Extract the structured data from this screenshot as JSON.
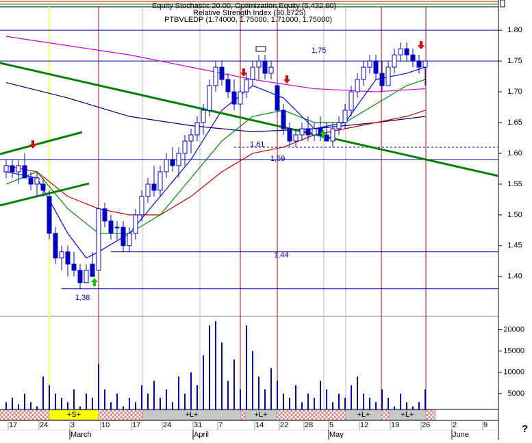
{
  "chart_data": {
    "type": "candlestick",
    "title": "PTBVLEDP (1.74000, 1.75000, 1.71000, 1.75000)",
    "subtitles": [
      "Relative Strength Index (30.8725)",
      "Equity Stochastic 20.00, Optimization Equity (5,432.60)"
    ],
    "categories": [
      null,
      "17",
      null,
      null,
      null,
      null,
      "24",
      null,
      null,
      null,
      null,
      "3",
      null,
      null,
      null,
      null,
      "10",
      null,
      null,
      null,
      null,
      "17",
      null,
      null,
      null,
      null,
      "24",
      null,
      null,
      null,
      null,
      "31",
      null,
      null,
      null,
      "7",
      null,
      null,
      null,
      null,
      null,
      "14",
      null,
      null,
      null,
      "22",
      null,
      null,
      null,
      "28",
      null,
      null,
      null,
      "5",
      null,
      null,
      null,
      null,
      "12",
      null,
      null,
      null,
      null,
      "19",
      null,
      null,
      null,
      null,
      "26",
      null,
      null,
      null,
      null,
      "2",
      null,
      null,
      null,
      null,
      "9",
      null
    ],
    "month_labels": [
      null,
      null,
      null,
      null,
      null,
      null,
      null,
      null,
      null,
      null,
      null,
      "March",
      null,
      null,
      null,
      null,
      null,
      null,
      null,
      null,
      null,
      null,
      null,
      null,
      null,
      null,
      null,
      null,
      null,
      null,
      null,
      "April",
      null,
      null,
      null,
      null,
      null,
      null,
      null,
      null,
      null,
      null,
      null,
      null,
      null,
      null,
      null,
      null,
      null,
      null,
      null,
      null,
      null,
      "May",
      null,
      null,
      null,
      null,
      null,
      null,
      null,
      null,
      null,
      null,
      null,
      null,
      null,
      null,
      null,
      null,
      null,
      null,
      null,
      "June",
      null,
      null,
      null,
      null,
      null,
      null
    ],
    "open": [
      1.57,
      1.58,
      1.57,
      1.58,
      1.56,
      1.55,
      1.55,
      1.53,
      1.47,
      1.43,
      1.44,
      1.42,
      1.41,
      1.39,
      1.42,
      1.41,
      1.51,
      1.49,
      1.48,
      1.48,
      1.45,
      1.47,
      1.5,
      1.53,
      1.55,
      1.54,
      1.57,
      1.59,
      1.58,
      1.6,
      1.62,
      1.63,
      1.65,
      1.67,
      1.71,
      1.74,
      1.72,
      1.7,
      1.68,
      1.7,
      1.72,
      1.74,
      1.75,
      1.73,
      1.71,
      1.67,
      1.64,
      1.62,
      1.63,
      1.64,
      1.63,
      1.64,
      1.63,
      1.62,
      1.64,
      1.65,
      1.67,
      1.7,
      1.72,
      1.74,
      1.75,
      1.73,
      1.71,
      1.74,
      1.76,
      1.77,
      1.76,
      1.75,
      1.74,
      null,
      null,
      null,
      null,
      null,
      null,
      null,
      null,
      null,
      null,
      null
    ],
    "high": [
      1.59,
      1.59,
      1.59,
      1.6,
      1.57,
      1.57,
      1.56,
      1.54,
      1.48,
      1.45,
      1.45,
      1.44,
      1.42,
      1.42,
      1.44,
      1.52,
      1.52,
      1.5,
      1.49,
      1.49,
      1.48,
      1.51,
      1.54,
      1.56,
      1.58,
      1.58,
      1.6,
      1.61,
      1.61,
      1.63,
      1.64,
      1.66,
      1.68,
      1.72,
      1.75,
      1.75,
      1.73,
      1.72,
      1.71,
      1.73,
      1.75,
      1.76,
      1.76,
      1.75,
      1.72,
      1.68,
      1.65,
      1.64,
      1.65,
      1.66,
      1.65,
      1.66,
      1.65,
      1.65,
      1.66,
      1.68,
      1.71,
      1.73,
      1.75,
      1.76,
      1.76,
      1.75,
      1.75,
      1.77,
      1.78,
      1.78,
      1.77,
      1.76,
      1.75,
      null,
      null,
      null,
      null,
      null,
      null,
      null,
      null,
      null,
      null,
      null
    ],
    "low": [
      1.56,
      1.56,
      1.55,
      1.56,
      1.54,
      1.53,
      1.53,
      1.46,
      1.42,
      1.41,
      1.4,
      1.4,
      1.38,
      1.39,
      1.4,
      1.41,
      1.48,
      1.46,
      1.46,
      1.44,
      1.44,
      1.46,
      1.49,
      1.52,
      1.53,
      1.53,
      1.56,
      1.57,
      1.56,
      1.58,
      1.6,
      1.62,
      1.63,
      1.66,
      1.7,
      1.71,
      1.69,
      1.67,
      1.67,
      1.69,
      1.71,
      1.72,
      1.72,
      1.72,
      1.66,
      1.63,
      1.61,
      1.61,
      1.62,
      1.62,
      1.62,
      1.62,
      1.62,
      1.61,
      1.63,
      1.64,
      1.66,
      1.69,
      1.71,
      1.73,
      1.72,
      1.7,
      1.71,
      1.73,
      1.75,
      1.75,
      1.74,
      1.73,
      1.71,
      null,
      null,
      null,
      null,
      null,
      null,
      null,
      null,
      null,
      null,
      null
    ],
    "close": [
      1.58,
      1.57,
      1.58,
      1.56,
      1.55,
      1.56,
      1.54,
      1.47,
      1.43,
      1.44,
      1.42,
      1.41,
      1.39,
      1.41,
      1.4,
      1.51,
      1.49,
      1.47,
      1.48,
      1.45,
      1.47,
      1.5,
      1.53,
      1.55,
      1.54,
      1.57,
      1.59,
      1.58,
      1.6,
      1.62,
      1.63,
      1.65,
      1.67,
      1.71,
      1.74,
      1.72,
      1.7,
      1.68,
      1.7,
      1.72,
      1.74,
      1.75,
      1.73,
      1.74,
      1.67,
      1.64,
      1.62,
      1.63,
      1.64,
      1.63,
      1.64,
      1.63,
      1.62,
      1.64,
      1.65,
      1.67,
      1.7,
      1.72,
      1.74,
      1.75,
      1.73,
      1.71,
      1.74,
      1.76,
      1.77,
      1.76,
      1.75,
      1.74,
      1.75,
      null,
      null,
      null,
      null,
      null,
      null,
      null,
      null,
      null,
      null,
      null
    ],
    "up_color": "#0000cc",
    "down_color": "#0000cc",
    "ylim": [
      1.343,
      1.838
    ],
    "yticks": [
      {
        "value": 1.8,
        "label": "1.80"
      },
      1.75,
      {
        "value": 1.7,
        "label": "1.70"
      },
      1.65,
      {
        "value": 1.6,
        "label": "1.60"
      },
      1.55,
      {
        "value": 1.5,
        "label": "1.50"
      },
      1.45,
      {
        "value": 1.4,
        "label": "1.40"
      }
    ],
    "overlays": [
      {
        "color": "#cc00cc",
        "x": [
          0,
          10,
          20,
          30,
          40,
          50,
          60,
          68
        ],
        "values": [
          1.79,
          1.775,
          1.76,
          1.74,
          1.72,
          1.705,
          1.7,
          1.705
        ]
      },
      {
        "color": "#000066",
        "x": [
          0,
          10,
          20,
          30,
          40,
          50,
          60,
          68
        ],
        "values": [
          1.715,
          1.69,
          1.66,
          1.645,
          1.635,
          1.64,
          1.65,
          1.66
        ]
      },
      {
        "color": "#cc0000",
        "x": [
          0,
          5,
          10,
          15,
          20,
          25,
          30,
          35,
          40,
          45,
          50,
          55,
          60,
          65,
          68
        ],
        "values": [
          1.58,
          1.57,
          1.53,
          1.51,
          1.5,
          1.5,
          1.53,
          1.57,
          1.6,
          1.61,
          1.63,
          1.64,
          1.65,
          1.66,
          1.67
        ]
      },
      {
        "color": "#008800",
        "x": [
          0,
          5,
          10,
          15,
          20,
          25,
          30,
          35,
          40,
          45,
          50,
          55,
          60,
          65,
          68
        ],
        "values": [
          1.55,
          1.57,
          1.51,
          1.47,
          1.47,
          1.5,
          1.56,
          1.62,
          1.66,
          1.67,
          1.65,
          1.65,
          1.68,
          1.71,
          1.72
        ]
      },
      {
        "color": "#0000ff",
        "x": [
          0,
          5,
          10,
          13,
          15,
          20,
          25,
          30,
          35,
          40,
          45,
          50,
          55,
          60,
          65,
          68
        ],
        "values": [
          1.57,
          1.56,
          1.47,
          1.43,
          1.44,
          1.47,
          1.53,
          1.59,
          1.67,
          1.71,
          1.69,
          1.64,
          1.65,
          1.72,
          1.73,
          1.74
        ]
      }
    ],
    "levels": [
      {
        "value": 1.8,
        "start": 0
      },
      {
        "value": 1.75,
        "label": "1,75",
        "start": 0
      },
      {
        "value": 1.61,
        "label": "1,61",
        "start": 38,
        "style": "dotted"
      },
      {
        "value": 1.59,
        "label": "1,59",
        "start": 0
      },
      {
        "value": 1.44,
        "label": "1,44",
        "start": 18
      },
      {
        "value": 1.38,
        "label": "1,38",
        "start": 10
      }
    ],
    "volume": {
      "type": "bar",
      "color": "#0000cc",
      "values": [
        3000,
        4000,
        2500,
        5000,
        3000,
        2000,
        9000,
        7000,
        5000,
        4000,
        3000,
        6000,
        2000,
        5000,
        4000,
        12000,
        6000,
        3000,
        5000,
        2000,
        4000,
        3000,
        7000,
        5000,
        8000,
        4000,
        6000,
        3000,
        9000,
        5000,
        10000,
        7000,
        14000,
        21000,
        22000,
        17000,
        8000,
        13000,
        6000,
        21000,
        15000,
        9000,
        6000,
        11000,
        8000,
        5000,
        4000,
        7000,
        3000,
        5000,
        4000,
        8000,
        6000,
        3000,
        5000,
        4000,
        7000,
        9000,
        5000,
        4000,
        3000,
        6000,
        4000,
        2000,
        5000,
        3000,
        2000,
        3000,
        6000,
        null,
        null,
        null,
        null,
        null,
        null,
        null,
        null,
        null,
        null,
        null
      ],
      "ylim": [
        0,
        22500
      ],
      "yticks": [
        5000,
        10000,
        15000,
        20000
      ]
    },
    "signal_bar": [
      "+S+",
      "+L+",
      "+L+",
      "+L+",
      "+L+"
    ],
    "help": "?"
  }
}
